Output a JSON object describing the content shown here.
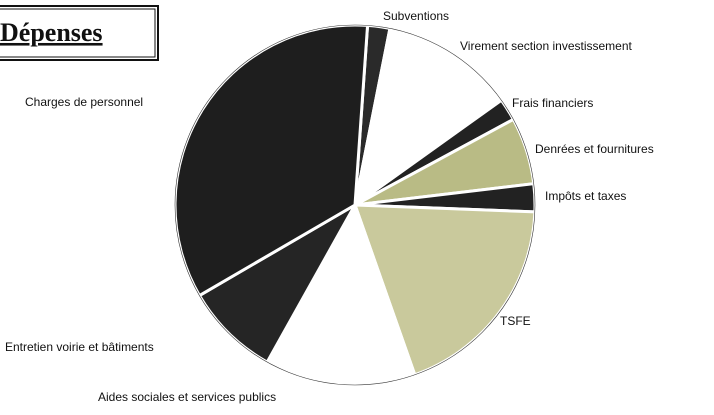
{
  "chart_data": {
    "type": "pie",
    "title": "Dépenses",
    "categories": [
      "Subventions",
      "Virement section investissement",
      "Frais financiers",
      "Denrées et fournitures",
      "Impôts et taxes",
      "TSFE",
      "Aides sociales et services publics",
      "Entretien voirie et bâtiments",
      "Charges de personnel"
    ],
    "values": [
      2,
      12,
      2,
      6,
      2.5,
      19,
      13.5,
      8.5,
      34.5
    ],
    "colors": [
      "#2a2a2a",
      "#ffffff",
      "#222222",
      "#b9bb85",
      "#222222",
      "#c9c99c",
      "#ffffff",
      "#252525",
      "#1e1e1e"
    ]
  }
}
